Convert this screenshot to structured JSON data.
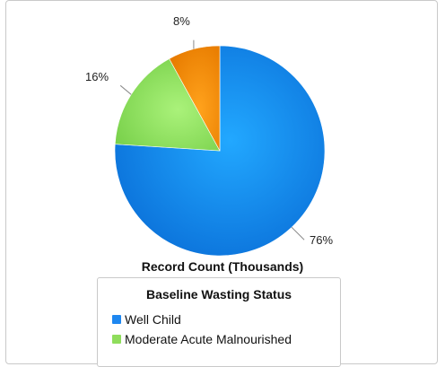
{
  "chart_data": {
    "type": "pie",
    "categories": [
      "Well Child",
      "Moderate Acute Malnourished",
      ""
    ],
    "values": [
      76,
      16,
      8
    ],
    "value_labels": [
      "76%",
      "16%",
      "8%"
    ],
    "colors": [
      "#1e87f0",
      "#8fdd5c",
      "#f28a06"
    ],
    "xlabel": "Record Count (Thousands)",
    "legend": {
      "title": "Baseline Wasting Status",
      "placement": "bottom",
      "entries": [
        "Well Child",
        "Moderate Acute Malnourished"
      ]
    }
  }
}
